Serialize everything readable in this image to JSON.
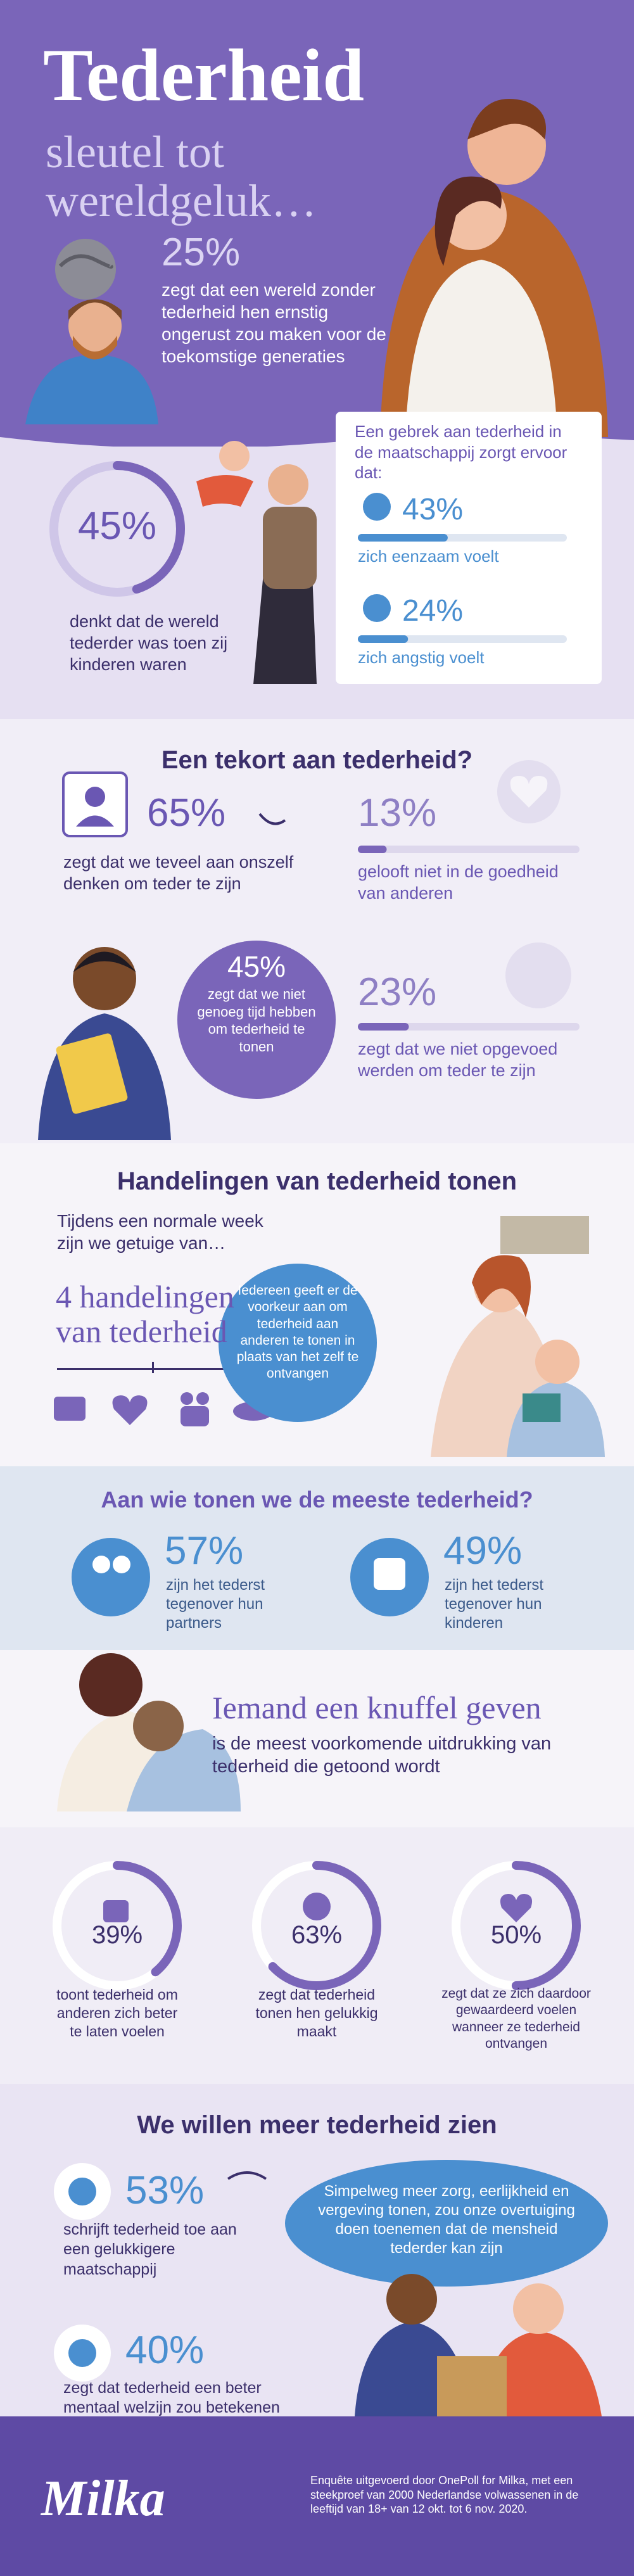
{
  "header": {
    "title": "Tederheid",
    "subtitle": [
      "sleutel tot",
      "wereldgeluk…"
    ],
    "stat": "25%",
    "text": "zegt dat een wereld zonder tederheid hen ernstig ongerust zou maken voor de toekomstige generaties"
  },
  "childhood": {
    "stat": {
      "value": 45,
      "label": "45%"
    },
    "text": "denkt dat de wereld tederder was toen zij kinderen waren"
  },
  "lack": {
    "heading": "Een gebrek aan tederheid in de maatschappij zorgt ervoor dat:",
    "items": [
      {
        "stat": {
          "value": 43,
          "label": "43%"
        },
        "text": "zich eenzaam voelt"
      },
      {
        "stat": {
          "value": 24,
          "label": "24%"
        },
        "text": "zich angstig voelt"
      }
    ]
  },
  "shortage": {
    "title": "Een tekort aan tederheid?",
    "items": [
      {
        "stat": "65%",
        "text": "zegt dat we teveel aan onszelf denken om teder te zijn"
      },
      {
        "stat": {
          "value": 13,
          "label": "13%"
        },
        "text": "gelooft niet in de goedheid van anderen"
      },
      {
        "stat": "45%",
        "text": "zegt dat we niet genoeg tijd hebben om tederheid te tonen"
      },
      {
        "stat": {
          "value": 23,
          "label": "23%"
        },
        "text": "zegt dat we niet opgevoed werden om teder te zijn"
      }
    ]
  },
  "acts": {
    "title": "Handelingen van tederheid tonen",
    "intro": "Tijdens een normale week zijn we getuige van…",
    "highlight": "4 handelingen van tederheid",
    "bubble": "Iedereen geeft er de voorkeur aan om tederheid aan anderen te tonen in plaats van het zelf te ontvangen"
  },
  "recipients": {
    "title": "Aan wie tonen we de meeste tederheid?",
    "items": [
      {
        "stat": "57%",
        "text": "zijn het tederst tegenover hun partners"
      },
      {
        "stat": "49%",
        "text": "zijn het tederst tegenover hun kinderen"
      }
    ]
  },
  "hug": {
    "title": "Iemand een knuffel geven",
    "text": "is de meest voorkomende uitdrukking van tederheid die getoond wordt"
  },
  "reasons": {
    "items": [
      {
        "stat": {
          "value": 39,
          "label": "39%"
        },
        "text": "toont tederheid om anderen zich beter te laten voelen"
      },
      {
        "stat": {
          "value": 63,
          "label": "63%"
        },
        "text": "zegt dat tederheid tonen hen gelukkig maakt"
      },
      {
        "stat": {
          "value": 50,
          "label": "50%"
        },
        "text": "zegt dat ze zich daardoor gewaardeerd voelen wanneer ze tederheid ontvangen"
      }
    ]
  },
  "more": {
    "title": "We willen meer tederheid zien",
    "items": [
      {
        "stat": "53%",
        "text": "schrijft tederheid toe aan een gelukkigere maatschappij"
      },
      {
        "stat": "40%",
        "text": "zegt dat tederheid een beter mentaal welzijn zou betekenen"
      }
    ],
    "bubble": "Simpelweg meer zorg, eerlijkheid en vergeving tonen, zou onze overtuiging doen toenemen dat de mensheid tederder kan zijn"
  },
  "footer": {
    "logo": "Milka",
    "note": "Enquête uitgevoerd door OnePoll for Milka, met een steekproef van 2000 Nederlandse volwassenen in de leeftijd van 18+ van 12 okt. tot 6 nov. 2020."
  }
}
